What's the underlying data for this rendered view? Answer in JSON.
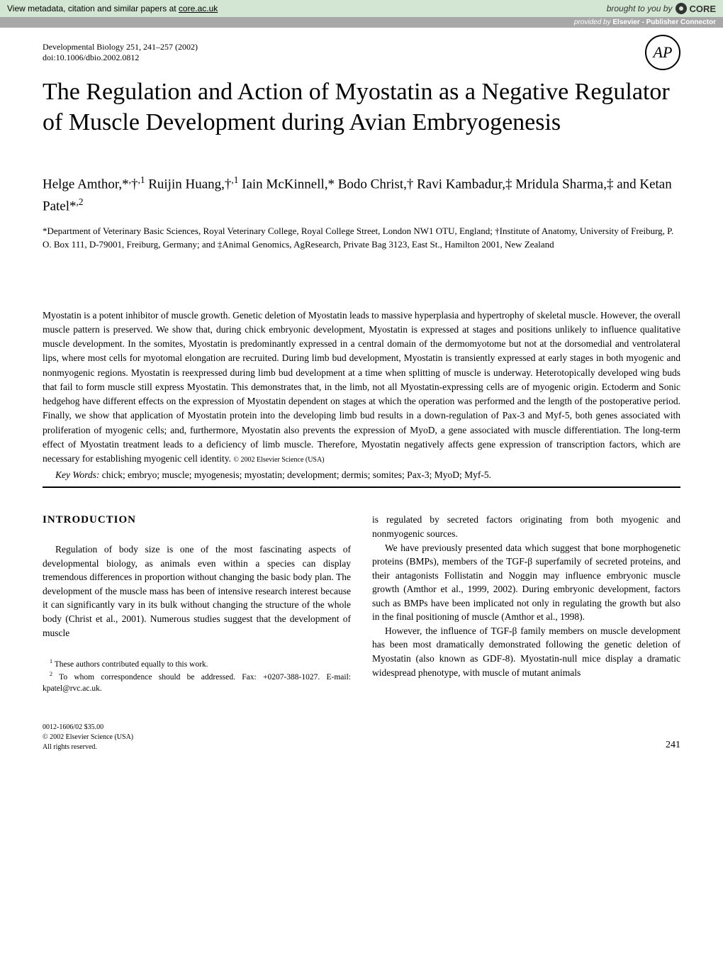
{
  "topbar": {
    "left_prefix": "View metadata, citation and similar papers at ",
    "left_link": "core.ac.uk",
    "right_prefix": "brought to you by ",
    "core_label": "CORE"
  },
  "provided_bar": {
    "prefix": "provided by ",
    "source": "Elsevier - Publisher Connector"
  },
  "journal": {
    "citation": "Developmental Biology 251, 241–257 (2002)",
    "doi": "doi:10.1006/dbio.2002.0812"
  },
  "publisher_logo": "AP",
  "title": "The Regulation and Action of Myostatin as a Negative Regulator of Muscle Development during Avian Embryogenesis",
  "authors_html": "Helge Amthor,*<sup>,</sup>†<sup>,1</sup> Ruijin Huang,†<sup>,1</sup> Iain McKinnell,* Bodo Christ,† Ravi Kambadur,‡ Mridula Sharma,‡ and Ketan Patel*<sup>,2</sup>",
  "affiliations": "*Department of Veterinary Basic Sciences, Royal Veterinary College, Royal College Street, London NW1 OTU, England; †Institute of Anatomy, University of Freiburg, P. O. Box 111, D-79001, Freiburg, Germany; and ‡Animal Genomics, AgResearch, Private Bag 3123, East St., Hamilton 2001, New Zealand",
  "abstract": "Myostatin is a potent inhibitor of muscle growth. Genetic deletion of Myostatin leads to massive hyperplasia and hypertrophy of skeletal muscle. However, the overall muscle pattern is preserved. We show that, during chick embryonic development, Myostatin is expressed at stages and positions unlikely to influence qualitative muscle development. In the somites, Myostatin is predominantly expressed in a central domain of the dermomyotome but not at the dorsomedial and ventrolateral lips, where most cells for myotomal elongation are recruited. During limb bud development, Myostatin is transiently expressed at early stages in both myogenic and nonmyogenic regions. Myostatin is reexpressed during limb bud development at a time when splitting of muscle is underway. Heterotopically developed wing buds that fail to form muscle still express Myostatin. This demonstrates that, in the limb, not all Myostatin-expressing cells are of myogenic origin. Ectoderm and Sonic hedgehog have different effects on the expression of Myostatin dependent on stages at which the operation was performed and the length of the postoperative period. Finally, we show that application of Myostatin protein into the developing limb bud results in a down-regulation of Pax-3 and Myf-5, both genes associated with proliferation of myogenic cells; and, furthermore, Myostatin also prevents the expression of MyoD, a gene associated with muscle differentiation. The long-term effect of Myostatin treatment leads to a deficiency of limb muscle. Therefore, Myostatin negatively affects gene expression of transcription factors, which are necessary for establishing myogenic cell identity.",
  "abstract_copyright": "© 2002 Elsevier Science (USA)",
  "keywords_label": "Key Words:",
  "keywords": "chick; embryo; muscle; myogenesis; myostatin; development; dermis; somites; Pax-3; MyoD; Myf-5.",
  "introduction": {
    "heading": "INTRODUCTION",
    "left_p1": "Regulation of body size is one of the most fascinating aspects of developmental biology, as animals even within a species can display tremendous differences in proportion without changing the basic body plan. The development of the muscle mass has been of intensive research interest because it can significantly vary in its bulk without changing the structure of the whole body (Christ et al., 2001). Numerous studies suggest that the development of muscle",
    "right_p1": "is regulated by secreted factors originating from both myogenic and nonmyogenic sources.",
    "right_p2": "We have previously presented data which suggest that bone morphogenetic proteins (BMPs), members of the TGF-β superfamily of secreted proteins, and their antagonists Follistatin and Noggin may influence embryonic muscle growth (Amthor et al., 1999, 2002). During embryonic development, factors such as BMPs have been implicated not only in regulating the growth but also in the final positioning of muscle (Amthor et al., 1998).",
    "right_p3": "However, the influence of TGF-β family members on muscle development has been most dramatically demonstrated following the genetic deletion of Myostatin (also known as GDF-8). Myostatin-null mice display a dramatic widespread phenotype, with muscle of mutant animals"
  },
  "footnotes": {
    "fn1": "These authors contributed equally to this work.",
    "fn2": "To whom correspondence should be addressed. Fax: +0207-388-1027. E-mail: kpatel@rvc.ac.uk."
  },
  "footer": {
    "issn": "0012-1606/02 $35.00",
    "copyright": "© 2002 Elsevier Science (USA)",
    "rights": "All rights reserved.",
    "page_number": "241"
  }
}
